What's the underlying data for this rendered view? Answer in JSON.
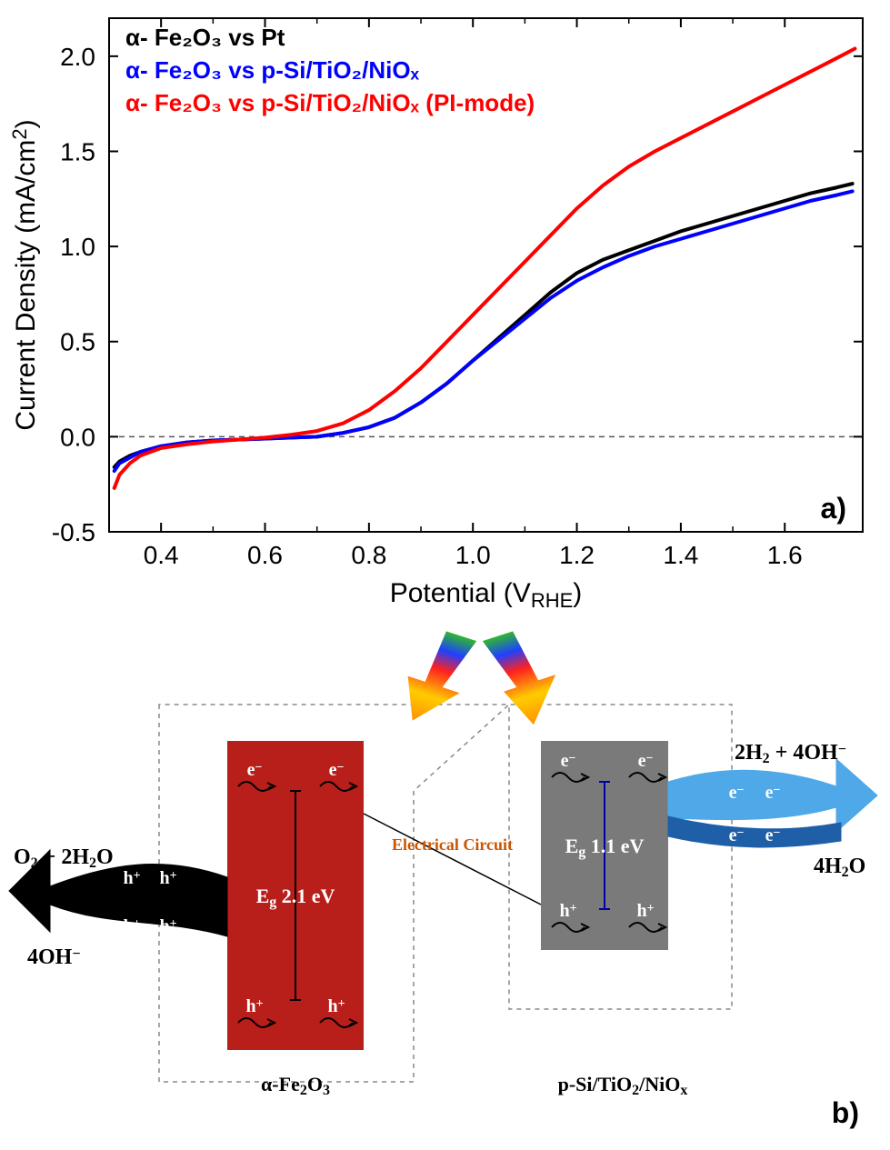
{
  "panel_a": {
    "type": "line",
    "xlabel": "Potential (VRHE)",
    "xlabel_sub": "RHE",
    "ylabel": "Current Density (mA/cm²)",
    "ylabel_sup": "2",
    "xlim": [
      0.3,
      1.75
    ],
    "ylim": [
      -0.5,
      2.2
    ],
    "xticks": [
      0.4,
      0.6,
      0.8,
      1.0,
      1.2,
      1.4,
      1.6
    ],
    "yticks": [
      -0.5,
      0.0,
      0.5,
      1.0,
      1.5,
      2.0
    ],
    "axis_color": "#000000",
    "tick_fontsize": 28,
    "label_fontsize": 30,
    "line_width": 4,
    "dash_line_y": 0.0,
    "dash_color": "#555555",
    "panel_label": "a)",
    "legend": [
      {
        "label": "α- Fe₂O₃ vs Pt",
        "color": "#000000"
      },
      {
        "label": "α- Fe₂O₃ vs p-Si/TiO₂/NiOₓ",
        "color": "#0000ff"
      },
      {
        "label": "α- Fe₂O₃ vs p-Si/TiO₂/NiOₓ (PI-mode)",
        "color": "#ff0000"
      }
    ],
    "series": [
      {
        "name": "black",
        "color": "#000000",
        "x": [
          0.31,
          0.32,
          0.34,
          0.36,
          0.4,
          0.45,
          0.5,
          0.55,
          0.6,
          0.65,
          0.7,
          0.75,
          0.8,
          0.85,
          0.9,
          0.95,
          1.0,
          1.05,
          1.1,
          1.15,
          1.2,
          1.25,
          1.3,
          1.35,
          1.4,
          1.45,
          1.5,
          1.55,
          1.6,
          1.65,
          1.7,
          1.73
        ],
        "y": [
          -0.16,
          -0.13,
          -0.1,
          -0.08,
          -0.05,
          -0.03,
          -0.02,
          -0.015,
          -0.01,
          -0.005,
          0.0,
          0.02,
          0.05,
          0.1,
          0.18,
          0.28,
          0.4,
          0.52,
          0.64,
          0.76,
          0.86,
          0.93,
          0.98,
          1.03,
          1.08,
          1.12,
          1.16,
          1.2,
          1.24,
          1.28,
          1.31,
          1.33
        ]
      },
      {
        "name": "blue",
        "color": "#0000ff",
        "x": [
          0.31,
          0.32,
          0.34,
          0.36,
          0.4,
          0.45,
          0.5,
          0.55,
          0.6,
          0.65,
          0.7,
          0.75,
          0.8,
          0.85,
          0.9,
          0.95,
          1.0,
          1.05,
          1.1,
          1.15,
          1.2,
          1.25,
          1.3,
          1.35,
          1.4,
          1.45,
          1.5,
          1.55,
          1.6,
          1.65,
          1.7,
          1.73
        ],
        "y": [
          -0.18,
          -0.14,
          -0.11,
          -0.08,
          -0.05,
          -0.03,
          -0.02,
          -0.015,
          -0.01,
          -0.005,
          0.0,
          0.02,
          0.05,
          0.1,
          0.18,
          0.28,
          0.4,
          0.51,
          0.62,
          0.73,
          0.82,
          0.89,
          0.95,
          1.0,
          1.04,
          1.08,
          1.12,
          1.16,
          1.2,
          1.24,
          1.27,
          1.29
        ]
      },
      {
        "name": "red",
        "color": "#ff0000",
        "x": [
          0.31,
          0.32,
          0.34,
          0.36,
          0.4,
          0.45,
          0.5,
          0.55,
          0.6,
          0.65,
          0.7,
          0.75,
          0.8,
          0.85,
          0.9,
          0.95,
          1.0,
          1.05,
          1.1,
          1.15,
          1.2,
          1.25,
          1.3,
          1.35,
          1.4,
          1.45,
          1.5,
          1.55,
          1.6,
          1.65,
          1.7,
          1.735
        ],
        "y": [
          -0.27,
          -0.2,
          -0.14,
          -0.1,
          -0.06,
          -0.04,
          -0.025,
          -0.015,
          -0.005,
          0.01,
          0.03,
          0.07,
          0.14,
          0.24,
          0.36,
          0.5,
          0.64,
          0.78,
          0.92,
          1.06,
          1.2,
          1.32,
          1.42,
          1.5,
          1.57,
          1.64,
          1.71,
          1.78,
          1.85,
          1.92,
          1.99,
          2.04
        ]
      }
    ]
  },
  "panel_b": {
    "panel_label": "b)",
    "left_box": {
      "color": "#b81e1a",
      "label": "α-Fe₂O₃",
      "eg_text": "Eg 2.1 eV",
      "eg_color": "#ffffff"
    },
    "right_box": {
      "color": "#7a7a7a",
      "label": "p-Si/TiO₂/NiOₓ",
      "eg_text": "Eg 1.1 eV",
      "eg_color": "#ffffff"
    },
    "circuit_label": "Electrical Circuit",
    "circuit_color": "#cc5500",
    "left_reaction_top": "O₂ + 2H₂O",
    "left_reaction_bottom": "4OH⁻",
    "right_reaction_top": "2H₂ + 4OH⁻",
    "right_reaction_bottom": "4H₂O",
    "hole_label": "h⁺",
    "electron_label": "e⁻",
    "arrow_black": "#000000",
    "arrow_blue_light": "#4fa8e8",
    "arrow_blue_dark": "#1e5fa8",
    "dashed_color": "#888888",
    "text_color": "#000000",
    "carrier_text_color": "#ffffff"
  }
}
